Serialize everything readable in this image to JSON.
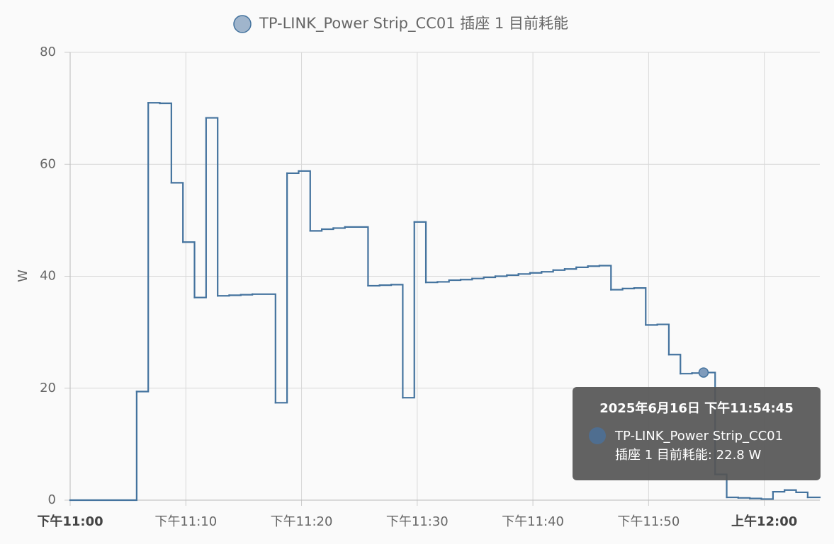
{
  "chart_data": {
    "type": "step-line",
    "y_label": "W",
    "xlim": [
      0,
      64.8
    ],
    "xticks": [
      {
        "value": 0,
        "label": "下午11:00",
        "bold": true
      },
      {
        "value": 10,
        "label": "下午11:10"
      },
      {
        "value": 20,
        "label": "下午11:20"
      },
      {
        "value": 30,
        "label": "下午11:30"
      },
      {
        "value": 40,
        "label": "下午11:40"
      },
      {
        "value": 50,
        "label": "下午11:50"
      },
      {
        "value": 60,
        "label": "上午12:00",
        "bold": true
      }
    ],
    "ylim": [
      0,
      80
    ],
    "yticks": [
      0,
      20,
      40,
      60,
      80
    ],
    "grid": true,
    "series": [
      {
        "name": "TP-LINK_Power Strip_CC01 插座 1 目前耗能",
        "color": "#44739e",
        "x": [
          0,
          5.75,
          6.75,
          7.75,
          8.75,
          9.75,
          10.75,
          11.75,
          12.75,
          13.75,
          14.75,
          15.75,
          17.75,
          18.75,
          19.75,
          20.75,
          21.75,
          22.75,
          23.75,
          25.75,
          26.75,
          27.75,
          28.75,
          29.75,
          30.75,
          31.75,
          32.75,
          33.75,
          34.75,
          35.75,
          36.75,
          37.75,
          38.75,
          39.75,
          40.75,
          41.75,
          42.75,
          43.75,
          44.75,
          45.75,
          46.75,
          47.75,
          48.75,
          49.75,
          50.75,
          51.75,
          52.75,
          53.75,
          54.75,
          55.75,
          56.75,
          57.75,
          58.75,
          59.75,
          60.75,
          61.75,
          62.75,
          63.75
        ],
        "values": [
          0,
          19.4,
          71.0,
          70.9,
          56.7,
          46.1,
          36.2,
          68.3,
          36.5,
          36.6,
          36.7,
          36.8,
          17.4,
          58.4,
          58.8,
          48.1,
          48.4,
          48.6,
          48.8,
          38.3,
          38.4,
          38.5,
          18.3,
          49.7,
          38.9,
          39.0,
          39.3,
          39.4,
          39.6,
          39.8,
          40.0,
          40.2,
          40.4,
          40.6,
          40.8,
          41.1,
          41.3,
          41.6,
          41.8,
          41.9,
          37.6,
          37.8,
          37.9,
          31.3,
          31.4,
          26.0,
          22.6,
          22.7,
          22.8,
          4.6,
          0.5,
          0.4,
          0.3,
          0.2,
          1.5,
          1.8,
          1.4,
          0.5
        ]
      }
    ],
    "tooltip": {
      "title": "2025年6月16日 下午11:54:45",
      "lines": [
        "TP-LINK_Power Strip_CC01",
        "插座 1 目前耗能: 22.8 W"
      ]
    }
  }
}
